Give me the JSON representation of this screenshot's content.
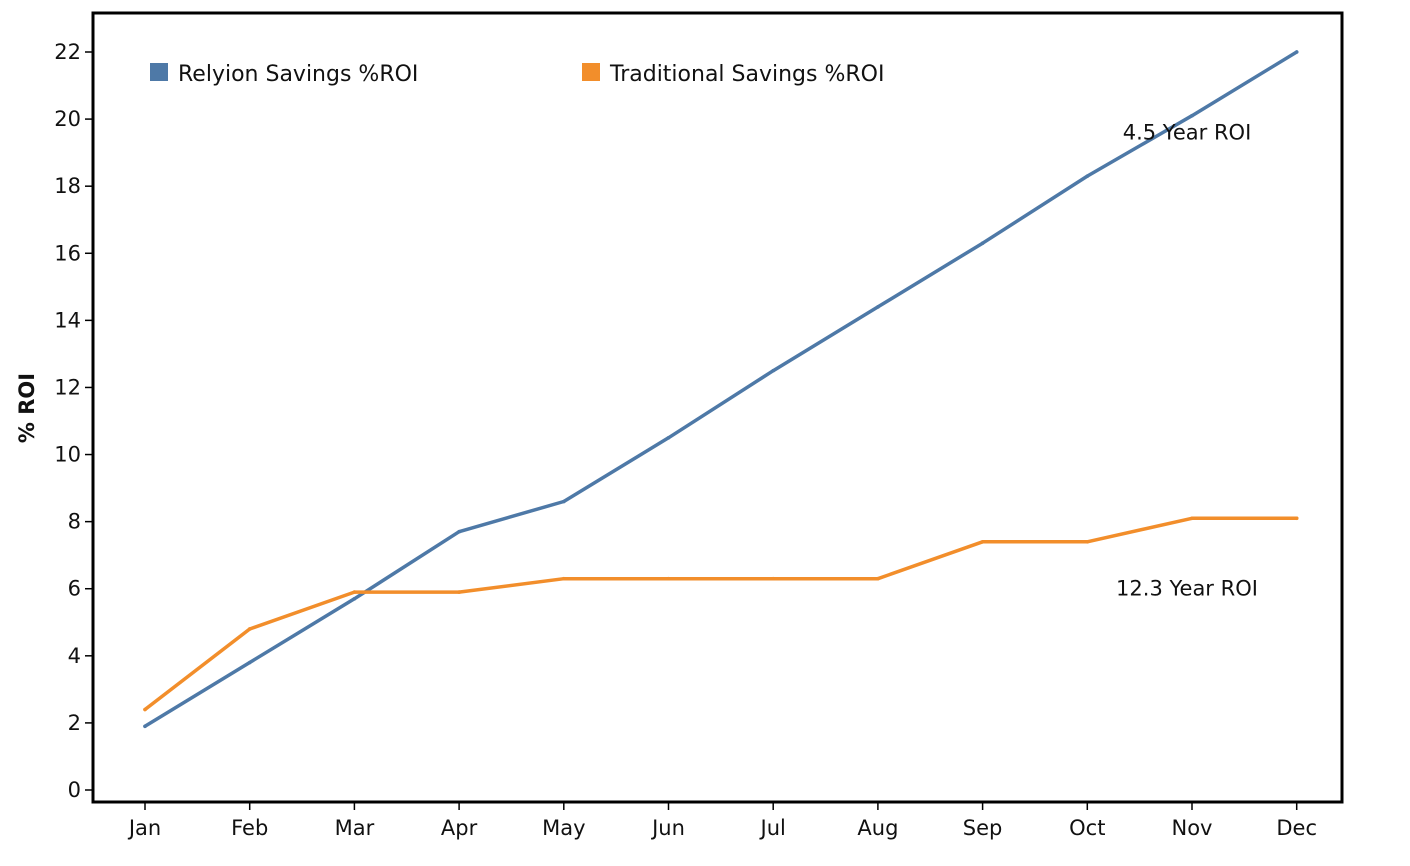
{
  "chart_data": {
    "type": "line",
    "categories": [
      "Jan",
      "Feb",
      "Mar",
      "Apr",
      "May",
      "Jun",
      "Jul",
      "Aug",
      "Sep",
      "Oct",
      "Nov",
      "Dec"
    ],
    "series": [
      {
        "name": "Relyion Savings %ROI",
        "color": "#4e79a7",
        "values": [
          1.9,
          3.8,
          5.7,
          7.7,
          8.6,
          10.5,
          12.5,
          14.4,
          16.3,
          18.3,
          20.1,
          22.0
        ]
      },
      {
        "name": "Traditional Savings %ROI",
        "color": "#f28e2b",
        "values": [
          2.4,
          4.8,
          5.9,
          5.9,
          6.3,
          6.3,
          6.3,
          6.3,
          7.4,
          7.4,
          8.1,
          8.1
        ]
      }
    ],
    "title": "",
    "xlabel": "",
    "ylabel": "% ROI",
    "ylim": [
      0,
      22
    ],
    "yticks": [
      0,
      2,
      4,
      6,
      8,
      10,
      12,
      14,
      16,
      18,
      20,
      22
    ],
    "grid": false,
    "legend_position": "top-left",
    "annotations": [
      {
        "text": "4.5 Year ROI",
        "series": "Relyion Savings %ROI",
        "x": "Nov",
        "y": 19.6
      },
      {
        "text": "12.3 Year ROI",
        "series": "Traditional Savings %ROI",
        "x": "Nov",
        "y": 6.0
      }
    ]
  }
}
